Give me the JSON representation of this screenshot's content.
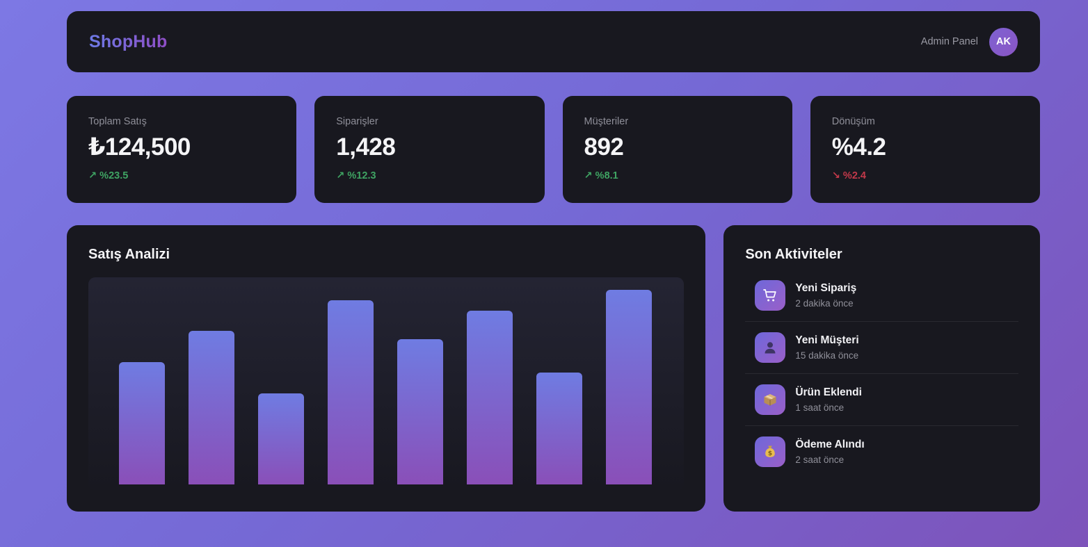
{
  "app": {
    "brand": "ShopHub",
    "header_right_label": "Admin Panel",
    "avatar_initials": "AK"
  },
  "colors": {
    "background_gradient": [
      "#7d78e4",
      "#7d53ba"
    ],
    "card_background": "#18181f",
    "brand_gradient": [
      "#6d7ae6",
      "#8f4ec6"
    ],
    "positive_trend": "#3fa463",
    "negative_trend": "#c3394a",
    "bar_gradient_top": "#6f7ce2",
    "bar_gradient_bottom": "#8a4fb8",
    "icon_tile_gradient": [
      "#6e68da",
      "#9a5fc8"
    ]
  },
  "stats": [
    {
      "label": "Toplam Satış",
      "value": "₺124,500",
      "delta": "↗ %23.5",
      "trend": "up"
    },
    {
      "label": "Siparişler",
      "value": "1,428",
      "delta": "↗ %12.3",
      "trend": "up"
    },
    {
      "label": "Müşteriler",
      "value": "892",
      "delta": "↗ %8.1",
      "trend": "up"
    },
    {
      "label": "Dönüşüm",
      "value": "%4.2",
      "delta": "↘ %2.4",
      "trend": "down"
    }
  ],
  "chart_data": {
    "type": "bar",
    "title": "Satış Analizi",
    "bars": 8,
    "values_pct": [
      59,
      74,
      44,
      89,
      70,
      84,
      54,
      94
    ],
    "x_tick_labels_visible": false,
    "y_axis_visible": false,
    "grid": false,
    "legend": false,
    "bar_color_top": "#6f7ce2",
    "bar_color_bottom": "#8a4fb8"
  },
  "activities": {
    "title": "Son Aktiviteler",
    "items": [
      {
        "icon": "shopping-cart",
        "title": "Yeni Sipariş",
        "time": "2 dakika önce"
      },
      {
        "icon": "user",
        "title": "Yeni Müşteri",
        "time": "15 dakika önce"
      },
      {
        "icon": "package",
        "title": "Ürün Eklendi",
        "time": "1 saat önce"
      },
      {
        "icon": "money-bag",
        "title": "Ödeme Alındı",
        "time": "2 saat önce"
      }
    ]
  }
}
